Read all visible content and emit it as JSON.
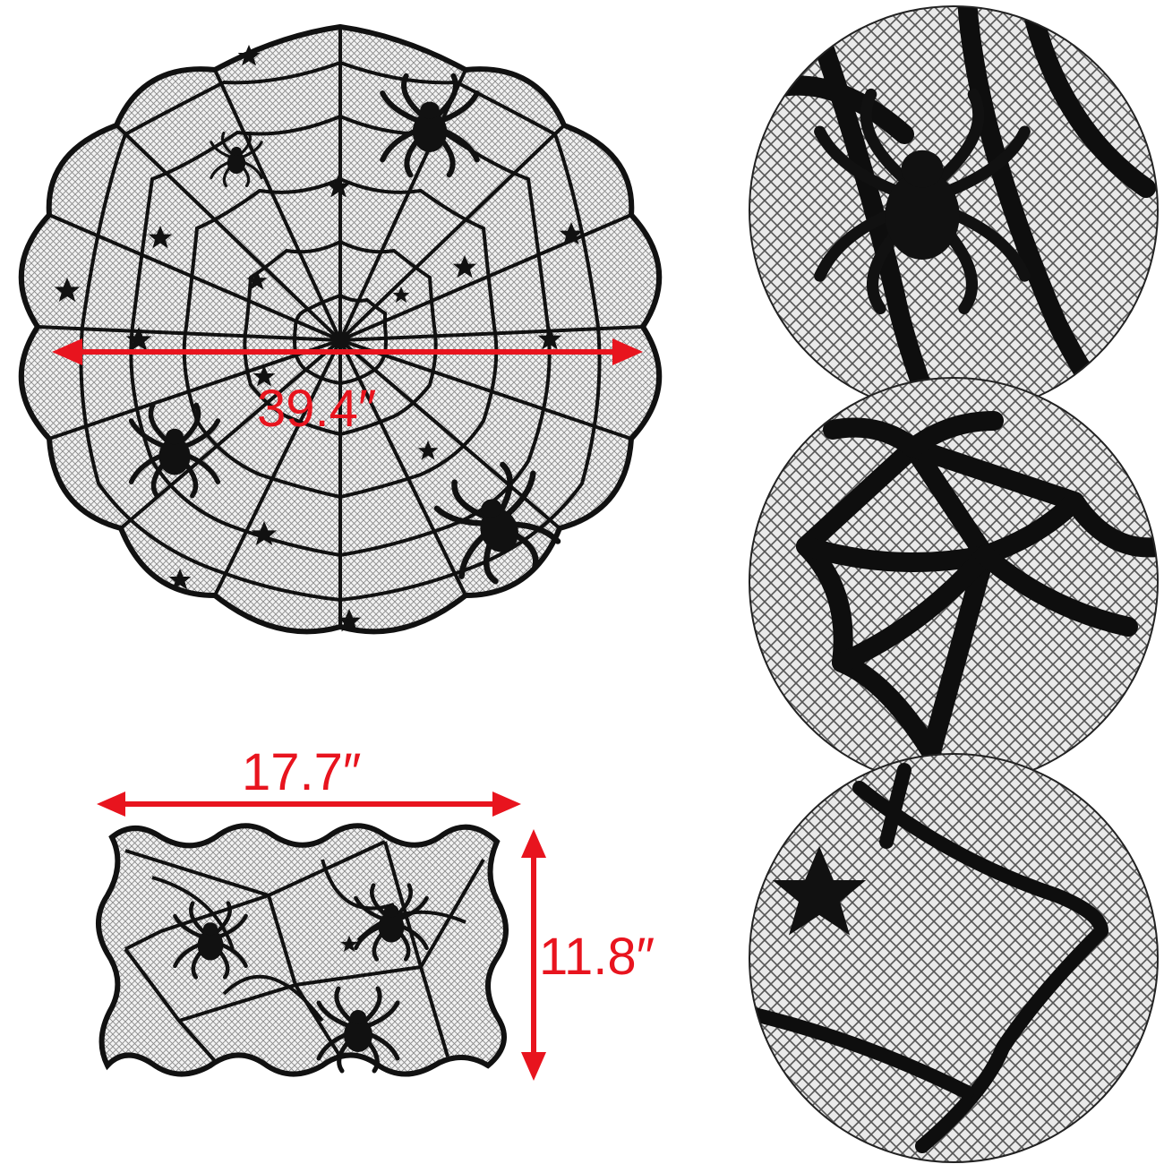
{
  "dimensions": {
    "round_diameter": "39.4″",
    "runner_width": "17.7″",
    "runner_height": "11.8″"
  },
  "colors": {
    "lace": "#111111",
    "mesh": "#8a8a8a",
    "accent": "#e8141e",
    "background": "#ffffff"
  },
  "icons": [
    "spider-icon",
    "star-icon",
    "spider-web-icon"
  ]
}
